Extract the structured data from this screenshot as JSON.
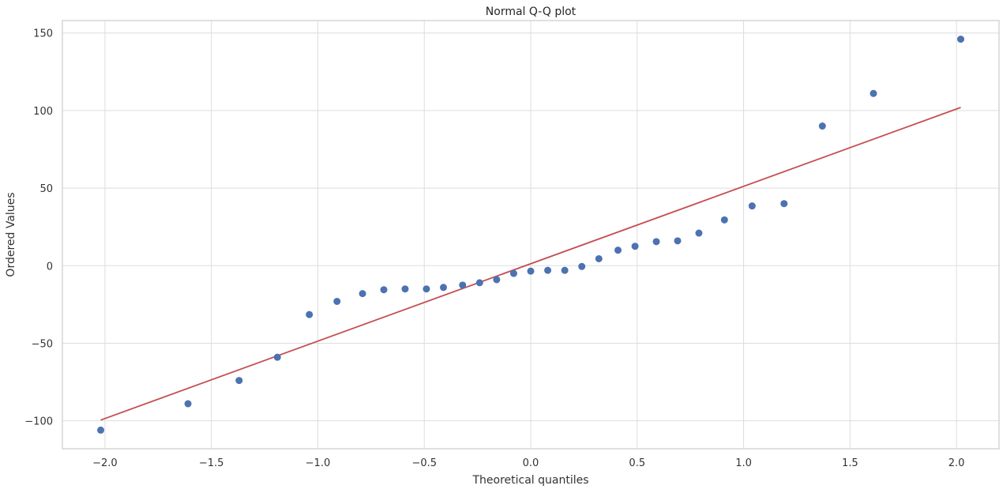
{
  "chart_data": {
    "type": "scatter",
    "title": "Normal Q-Q plot",
    "xlabel": "Theoretical quantiles",
    "ylabel": "Ordered Values",
    "xlim": [
      -2.2,
      2.2
    ],
    "ylim": [
      -118,
      158
    ],
    "grid": true,
    "x_ticks": [
      -2.0,
      -1.5,
      -1.0,
      -0.5,
      0.0,
      0.5,
      1.0,
      1.5,
      2.0
    ],
    "x_tick_labels": [
      "−2.0",
      "−1.5",
      "−1.0",
      "−0.5",
      "0.0",
      "0.5",
      "1.0",
      "1.5",
      "2.0"
    ],
    "y_ticks": [
      -100,
      -50,
      0,
      50,
      100,
      150
    ],
    "y_tick_labels": [
      "−100",
      "−50",
      "0",
      "50",
      "100",
      "150"
    ],
    "points": {
      "color": "#4c72b0",
      "x": [
        -2.02,
        -1.61,
        -1.37,
        -1.19,
        -1.04,
        -0.91,
        -0.79,
        -0.69,
        -0.59,
        -0.49,
        -0.41,
        -0.32,
        -0.24,
        -0.16,
        -0.08,
        0.0,
        0.08,
        0.16,
        0.24,
        0.32,
        0.41,
        0.49,
        0.59,
        0.69,
        0.79,
        0.91,
        1.04,
        1.19,
        1.37,
        1.61,
        2.02
      ],
      "y": [
        -106,
        -89,
        -74,
        -59,
        -31.5,
        -23,
        -18,
        -15.5,
        -15,
        -15,
        -14,
        -12.5,
        -11,
        -9,
        -5,
        -3.5,
        -3,
        -3,
        -0.5,
        4.5,
        10,
        12.5,
        15.5,
        16,
        21,
        29.5,
        38.5,
        40,
        90,
        111,
        146
      ]
    },
    "fit_line": {
      "color": "#c44e52",
      "x": [
        -2.02,
        2.02
      ],
      "y": [
        -99.5,
        102
      ]
    }
  }
}
